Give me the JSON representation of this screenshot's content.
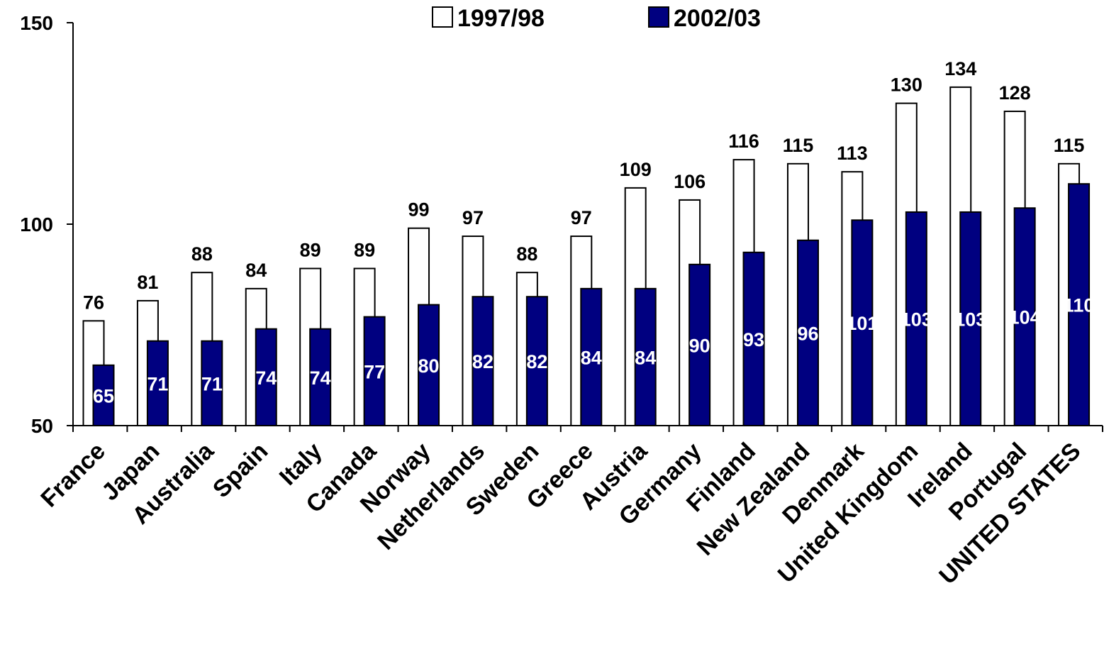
{
  "chart_data": {
    "type": "bar",
    "categories": [
      "France",
      "Japan",
      "Australia",
      "Spain",
      "Italy",
      "Canada",
      "Norway",
      "Netherlands",
      "Sweden",
      "Greece",
      "Austria",
      "Germany",
      "Finland",
      "New Zealand",
      "Denmark",
      "United Kingdom",
      "Ireland",
      "Portugal",
      "UNITED STATES"
    ],
    "series": [
      {
        "name": "1997/98",
        "values": [
          76,
          81,
          88,
          84,
          89,
          89,
          99,
          97,
          88,
          97,
          109,
          106,
          116,
          115,
          113,
          130,
          134,
          128,
          115
        ],
        "fill": "#ffffff",
        "stroke": "#000000",
        "label_color": "#000000",
        "label_position": "above"
      },
      {
        "name": "2002/03",
        "values": [
          65,
          71,
          71,
          74,
          74,
          77,
          80,
          82,
          82,
          84,
          84,
          90,
          93,
          96,
          101,
          103,
          103,
          104,
          110
        ],
        "fill": "#000080",
        "stroke": "#000000",
        "label_color": "#ffffff",
        "label_position": "inside"
      }
    ],
    "ylim": [
      50,
      150
    ],
    "yticks": [
      50,
      100,
      150
    ],
    "title": "",
    "xlabel": "",
    "ylabel": "",
    "legend_position": "top-center",
    "grid": false
  }
}
